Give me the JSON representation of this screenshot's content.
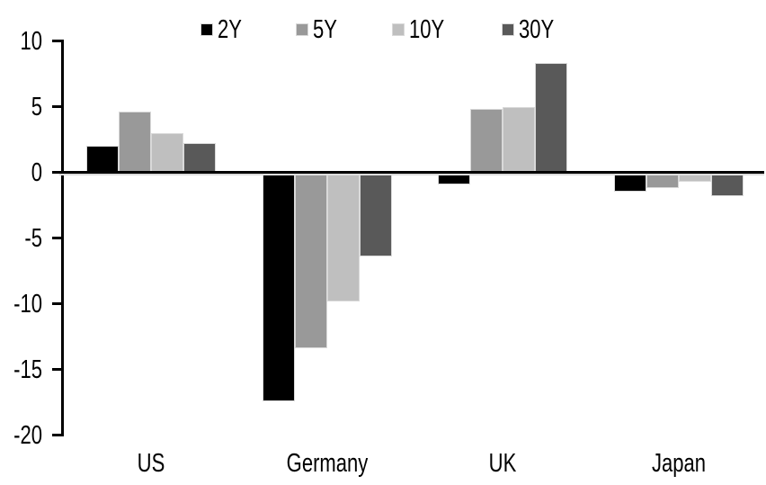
{
  "chart_data": {
    "type": "bar",
    "title": "",
    "xlabel": "",
    "ylabel": "",
    "categories": [
      "US",
      "Germany",
      "UK",
      "Japan"
    ],
    "series": [
      {
        "name": "2Y",
        "color": "#000000",
        "values": [
          2.0,
          -17.4,
          -0.9,
          -1.5
        ]
      },
      {
        "name": "5Y",
        "color": "#999999",
        "values": [
          4.6,
          -13.4,
          4.8,
          -1.2
        ]
      },
      {
        "name": "10Y",
        "color": "#bfbfbf",
        "values": [
          3.0,
          -9.8,
          5.0,
          -0.7
        ]
      },
      {
        "name": "30Y",
        "color": "#595959",
        "values": [
          2.2,
          -6.4,
          8.3,
          -1.8
        ]
      }
    ],
    "ylim": [
      -20,
      10
    ],
    "yticks": [
      10,
      5,
      0,
      -5,
      -10,
      -15,
      -20
    ],
    "legend_position": "top-center",
    "grid": false,
    "axis_color": "#000000",
    "bar_outline_color": "#d9d9d9",
    "background": "#ffffff"
  }
}
